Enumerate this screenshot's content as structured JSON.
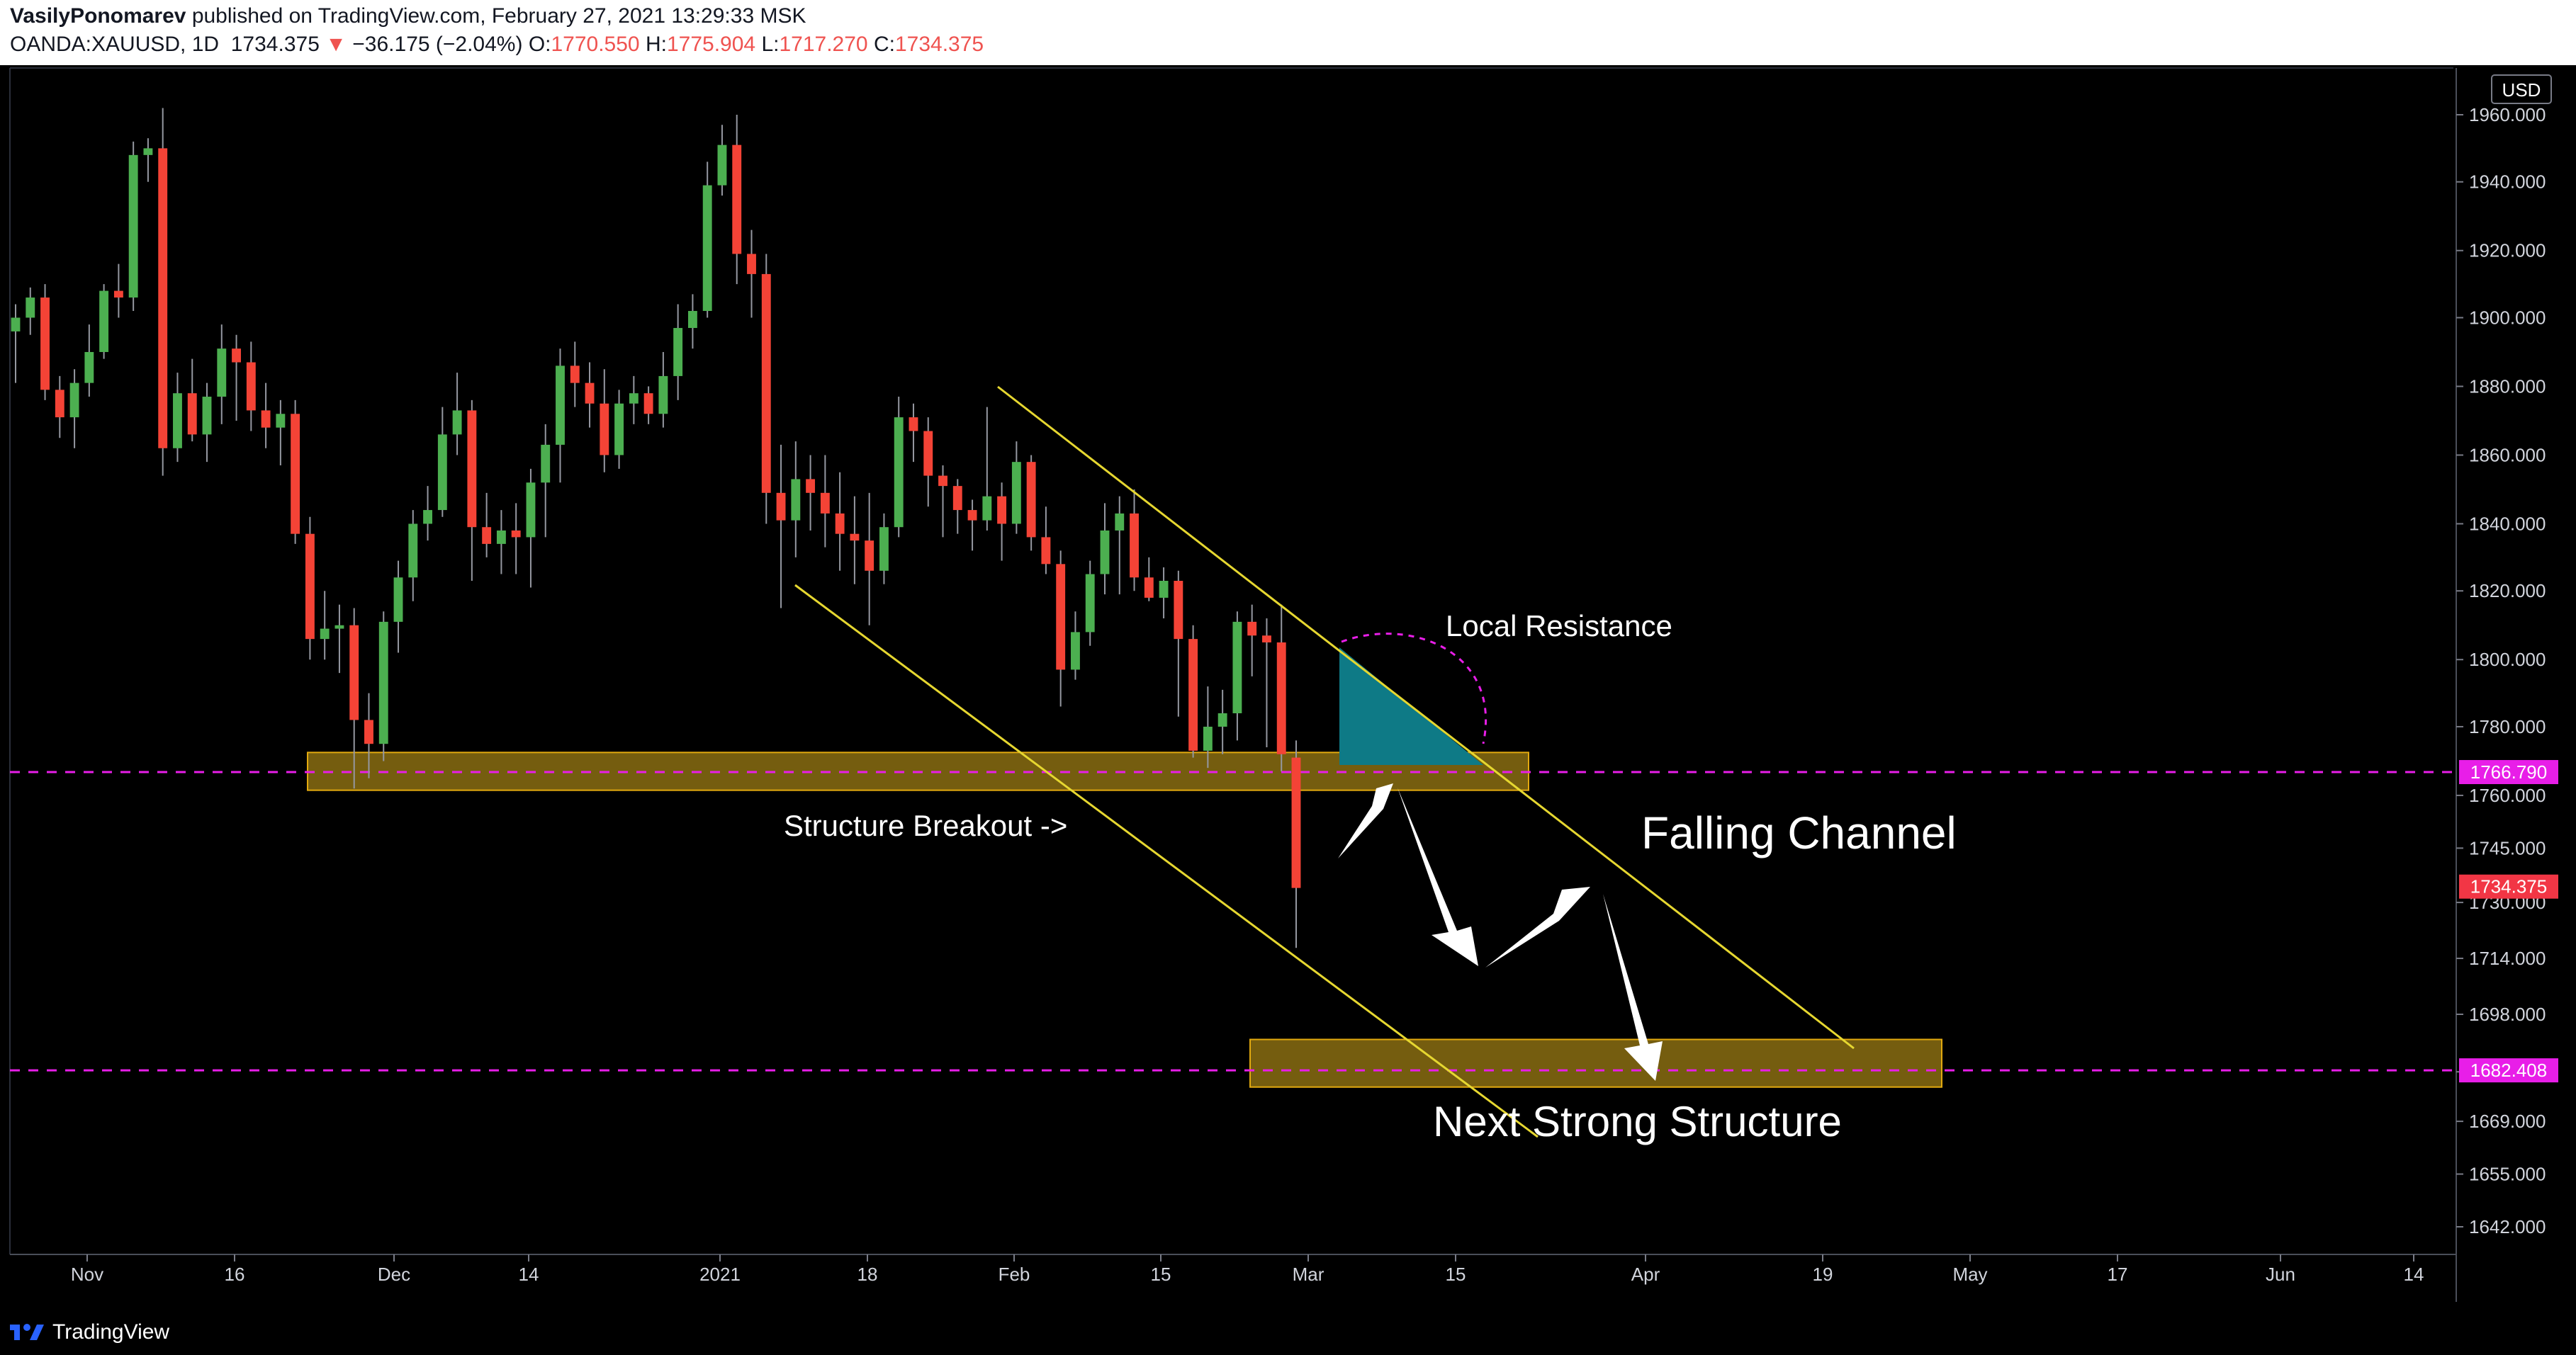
{
  "header": {
    "author": "VasilyPonomarev",
    "published_text": "published on TradingView.com, February 27, 2021 13:29:33 MSK",
    "symbol": "OANDA:XAUUSD, 1D",
    "last": "1734.375",
    "change_arrow": "▼",
    "change": "−36.175 (−2.04%)",
    "open_label": "O:",
    "open": "1770.550",
    "high_label": "H:",
    "high": "1775.904",
    "low_label": "L:",
    "low": "1717.270",
    "close_label": "C:",
    "close": "1734.375"
  },
  "footer": {
    "brand": "TradingView",
    "logo_icon": "tradingview-logo-icon"
  },
  "colors": {
    "up": "#4caf50",
    "down": "#f44336",
    "channel": "#e6d730",
    "zone_fill": "#8a6d12",
    "zone_border": "#e2a90f",
    "level_line": "#e81ee8",
    "triangle": "#0e7a86",
    "last_price_badge": "#f23645"
  },
  "chart_data": {
    "type": "candlestick",
    "symbol": "OANDA:XAUUSD",
    "timeframe": "1D",
    "currency": "USD",
    "ylim": [
      1633,
      1972
    ],
    "y_ticks": [
      "1960.000",
      "1940.000",
      "1920.000",
      "1900.000",
      "1880.000",
      "1860.000",
      "1840.000",
      "1820.000",
      "1800.000",
      "1780.000",
      "1760.000",
      "1745.000",
      "1730.000",
      "1714.000",
      "1698.000",
      "1682.000",
      "1669.000",
      "1655.000",
      "1642.000"
    ],
    "x_ticks": [
      "Nov",
      "16",
      "Dec",
      "14",
      "2021",
      "18",
      "Feb",
      "15",
      "Mar",
      "15",
      "Apr",
      "19",
      "May",
      "17",
      "Jun",
      "14"
    ],
    "candles": [
      [
        1896,
        1904,
        1881,
        1900
      ],
      [
        1900,
        1909,
        1895,
        1906
      ],
      [
        1906,
        1910,
        1876,
        1879
      ],
      [
        1879,
        1883,
        1865,
        1871
      ],
      [
        1871,
        1885,
        1862,
        1881
      ],
      [
        1881,
        1898,
        1877,
        1890
      ],
      [
        1890,
        1910,
        1888,
        1908
      ],
      [
        1908,
        1916,
        1900,
        1906
      ],
      [
        1906,
        1952,
        1902,
        1948
      ],
      [
        1948,
        1953,
        1940,
        1950
      ],
      [
        1950,
        1962,
        1854,
        1862
      ],
      [
        1862,
        1884,
        1858,
        1878
      ],
      [
        1878,
        1888,
        1864,
        1866
      ],
      [
        1866,
        1881,
        1858,
        1877
      ],
      [
        1877,
        1898,
        1869,
        1891
      ],
      [
        1891,
        1895,
        1870,
        1887
      ],
      [
        1887,
        1893,
        1867,
        1873
      ],
      [
        1873,
        1881,
        1862,
        1868
      ],
      [
        1868,
        1876,
        1857,
        1872
      ],
      [
        1872,
        1876,
        1834,
        1837
      ],
      [
        1837,
        1842,
        1800,
        1806
      ],
      [
        1806,
        1820,
        1800,
        1809
      ],
      [
        1809,
        1816,
        1796,
        1810
      ],
      [
        1810,
        1815,
        1762,
        1782
      ],
      [
        1782,
        1790,
        1765,
        1775
      ],
      [
        1775,
        1814,
        1770,
        1811
      ],
      [
        1811,
        1829,
        1802,
        1824
      ],
      [
        1824,
        1844,
        1817,
        1840
      ],
      [
        1840,
        1851,
        1835,
        1844
      ],
      [
        1844,
        1874,
        1842,
        1866
      ],
      [
        1866,
        1884,
        1860,
        1873
      ],
      [
        1873,
        1876,
        1823,
        1839
      ],
      [
        1839,
        1849,
        1830,
        1834
      ],
      [
        1834,
        1844,
        1825,
        1838
      ],
      [
        1838,
        1846,
        1825,
        1836
      ],
      [
        1836,
        1856,
        1821,
        1852
      ],
      [
        1852,
        1869,
        1836,
        1863
      ],
      [
        1863,
        1891,
        1852,
        1886
      ],
      [
        1886,
        1893,
        1874,
        1881
      ],
      [
        1881,
        1887,
        1868,
        1875
      ],
      [
        1875,
        1885,
        1855,
        1860
      ],
      [
        1860,
        1879,
        1856,
        1875
      ],
      [
        1875,
        1883,
        1869,
        1878
      ],
      [
        1878,
        1880,
        1869,
        1872
      ],
      [
        1872,
        1890,
        1868,
        1883
      ],
      [
        1883,
        1904,
        1876,
        1897
      ],
      [
        1897,
        1907,
        1891,
        1902
      ],
      [
        1902,
        1946,
        1900,
        1939
      ],
      [
        1939,
        1957,
        1936,
        1951
      ],
      [
        1951,
        1960,
        1910,
        1919
      ],
      [
        1919,
        1926,
        1900,
        1913
      ],
      [
        1913,
        1919,
        1840,
        1849
      ],
      [
        1849,
        1863,
        1815,
        1841
      ],
      [
        1841,
        1864,
        1830,
        1853
      ],
      [
        1853,
        1860,
        1838,
        1849
      ],
      [
        1849,
        1860,
        1833,
        1843
      ],
      [
        1843,
        1855,
        1826,
        1837
      ],
      [
        1837,
        1848,
        1822,
        1835
      ],
      [
        1835,
        1849,
        1810,
        1826
      ],
      [
        1826,
        1843,
        1822,
        1839
      ],
      [
        1839,
        1877,
        1836,
        1871
      ],
      [
        1871,
        1875,
        1858,
        1867
      ],
      [
        1867,
        1871,
        1845,
        1854
      ],
      [
        1854,
        1857,
        1836,
        1851
      ],
      [
        1851,
        1853,
        1837,
        1844
      ],
      [
        1844,
        1847,
        1832,
        1841
      ],
      [
        1841,
        1874,
        1838,
        1848
      ],
      [
        1848,
        1852,
        1829,
        1840
      ],
      [
        1840,
        1864,
        1837,
        1858
      ],
      [
        1858,
        1860,
        1832,
        1836
      ],
      [
        1836,
        1845,
        1825,
        1828
      ],
      [
        1828,
        1832,
        1786,
        1797
      ],
      [
        1797,
        1814,
        1794,
        1808
      ],
      [
        1808,
        1829,
        1804,
        1825
      ],
      [
        1825,
        1846,
        1819,
        1838
      ],
      [
        1838,
        1848,
        1819,
        1843
      ],
      [
        1843,
        1850,
        1820,
        1824
      ],
      [
        1824,
        1830,
        1817,
        1818
      ],
      [
        1818,
        1827,
        1812,
        1823
      ],
      [
        1823,
        1826,
        1783,
        1806
      ],
      [
        1806,
        1810,
        1771,
        1773
      ],
      [
        1773,
        1792,
        1768,
        1780
      ],
      [
        1780,
        1791,
        1772,
        1784
      ],
      [
        1784,
        1814,
        1776,
        1811
      ],
      [
        1811,
        1816,
        1795,
        1807
      ],
      [
        1807,
        1812,
        1774,
        1805
      ],
      [
        1805,
        1816,
        1767,
        1772
      ],
      [
        1771,
        1776,
        1717,
        1734
      ]
    ],
    "annotations": [
      "Local Resistance",
      "Structure Breakout ->",
      "Falling Channel",
      "Next Strong Structure"
    ],
    "price_labels": {
      "level1": "1766.790",
      "last": "1734.375",
      "level2": "1682.408"
    },
    "levels": {
      "level1": 1766.79,
      "last": 1734.375,
      "level2": 1682.408
    },
    "zones": [
      {
        "low": 1761.5,
        "high": 1772.5,
        "start_candle": 0,
        "end_date": "mid-Mar"
      },
      {
        "low": 1678,
        "high": 1691,
        "start_candle": 86,
        "end_date": "late-Apr"
      }
    ]
  }
}
